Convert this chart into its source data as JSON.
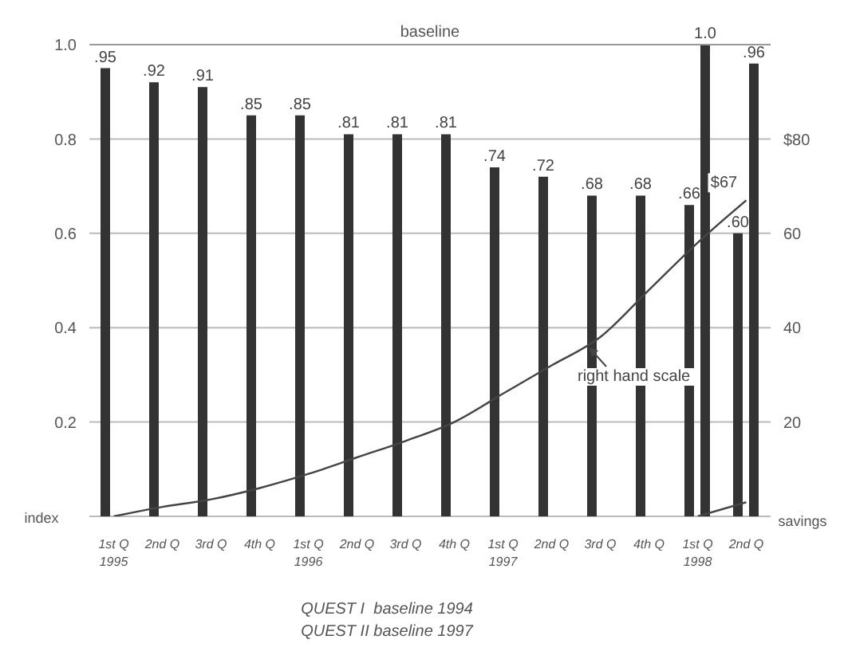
{
  "chart_data": {
    "type": "bar",
    "categories": [
      "1st Q\n1995",
      "2nd Q",
      "3rd Q",
      "4th Q",
      "1st Q\n1996",
      "2nd Q",
      "3rd Q",
      "4th Q",
      "1st Q\n1997",
      "2nd Q",
      "3rd Q",
      "4th Q",
      "1st Q\n1998",
      "2nd Q"
    ],
    "series": [
      {
        "color": "#333333",
        "values": [
          0.95,
          0.92,
          0.91,
          0.85,
          0.85,
          0.81,
          0.81,
          0.81,
          0.74,
          0.72,
          0.68,
          0.68,
          0.66,
          0.6
        ],
        "value_labels": [
          ".95",
          ".92",
          ".91",
          ".85",
          ".85",
          ".81",
          ".81",
          ".81",
          ".74",
          ".72",
          ".68",
          ".68",
          ".66",
          ".60"
        ]
      },
      {
        "color": "#333333",
        "values": [
          null,
          null,
          null,
          null,
          null,
          null,
          null,
          null,
          null,
          null,
          null,
          null,
          1.0,
          0.96
        ],
        "value_labels": [
          null,
          null,
          null,
          null,
          null,
          null,
          null,
          null,
          null,
          null,
          null,
          null,
          "1.0",
          ".96"
        ]
      },
      {
        "type": "line",
        "axis": "y2",
        "color": "#444444",
        "values": [
          0,
          2,
          3.6,
          6,
          9,
          12.5,
          16,
          20,
          26,
          32,
          38,
          48,
          58,
          67
        ],
        "value_labels": [
          null,
          null,
          null,
          null,
          null,
          null,
          null,
          null,
          null,
          null,
          null,
          null,
          null,
          "$67"
        ]
      },
      {
        "type": "line",
        "axis": "y2",
        "color": "#444444",
        "values": [
          null,
          null,
          null,
          null,
          null,
          null,
          null,
          null,
          null,
          null,
          null,
          null,
          0,
          3
        ]
      }
    ],
    "ylabel": "index",
    "y2label": "savings",
    "ylim": [
      0,
      1
    ],
    "yticks": [
      0.2,
      0.4,
      0.6,
      0.8,
      {
        "value": 1,
        "label": "1.0"
      }
    ],
    "y2lim": [
      0,
      100
    ],
    "y2ticks": [
      20,
      40,
      60,
      {
        "value": 80,
        "label": "$80"
      }
    ],
    "grid": "y",
    "ref_lines": [
      {
        "axis": "y",
        "value": 1,
        "label": "baseline"
      }
    ],
    "annotations": [
      "right hand scale",
      "QUEST I  baseline 1994",
      "QUEST II baseline 1997"
    ]
  }
}
